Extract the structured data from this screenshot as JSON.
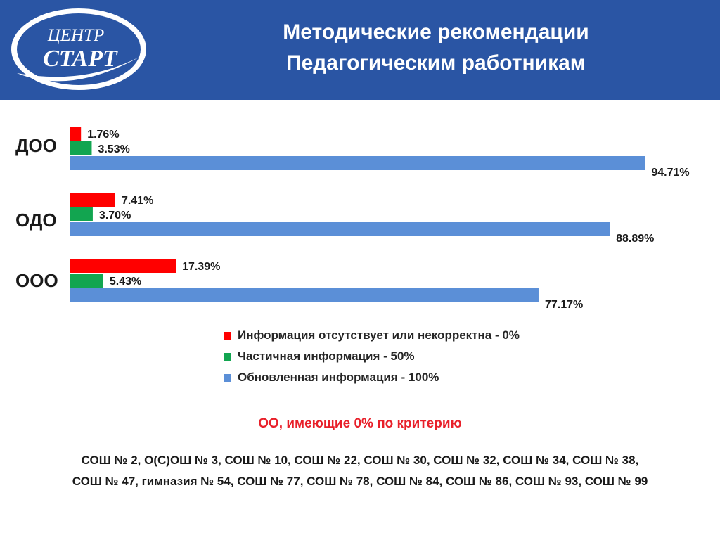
{
  "colors": {
    "header_bg": "#2a55a4",
    "absent": "#ff0000",
    "partial": "#12a550",
    "updated": "#5b8fd7",
    "criterion_text": "#e8202a"
  },
  "logo": {
    "line1": "ЦЕНТР",
    "line2": "СТАРТ"
  },
  "header": {
    "title_line1": "Методические рекомендации",
    "title_line2": "Педагогическим работникам"
  },
  "chart_data": {
    "type": "bar",
    "orientation": "horizontal",
    "categories": [
      "ДОО",
      "ОДО",
      "ООО"
    ],
    "series": [
      {
        "name": "Информация отсутствует или некорректна - 0%",
        "color": "#ff0000",
        "values": [
          1.76,
          7.41,
          17.39
        ],
        "labels": [
          "1.76%",
          "7.41%",
          "17.39%"
        ]
      },
      {
        "name": "Частичная информация - 50%",
        "color": "#12a550",
        "values": [
          3.53,
          3.7,
          5.43
        ],
        "labels": [
          "3.53%",
          "3.70%",
          "5.43%"
        ]
      },
      {
        "name": "Обновленная информация - 100%",
        "color": "#5b8fd7",
        "values": [
          94.71,
          88.89,
          77.17
        ],
        "labels": [
          "94.71%",
          "88.89%",
          "77.17%"
        ]
      }
    ],
    "xlim": [
      0,
      100
    ],
    "grid": false,
    "legend_position": "bottom-right"
  },
  "criterion_title": "ОО, имеющие 0% по критерию",
  "schools": {
    "line1": "СОШ № 2, О(С)ОШ № 3, СОШ № 10, СОШ № 22, СОШ № 30, СОШ № 32, СОШ № 34, СОШ № 38,",
    "line2": "СОШ № 47, гимназия № 54, СОШ № 77, СОШ № 78, СОШ № 84, СОШ № 86, СОШ № 93, СОШ № 99"
  }
}
